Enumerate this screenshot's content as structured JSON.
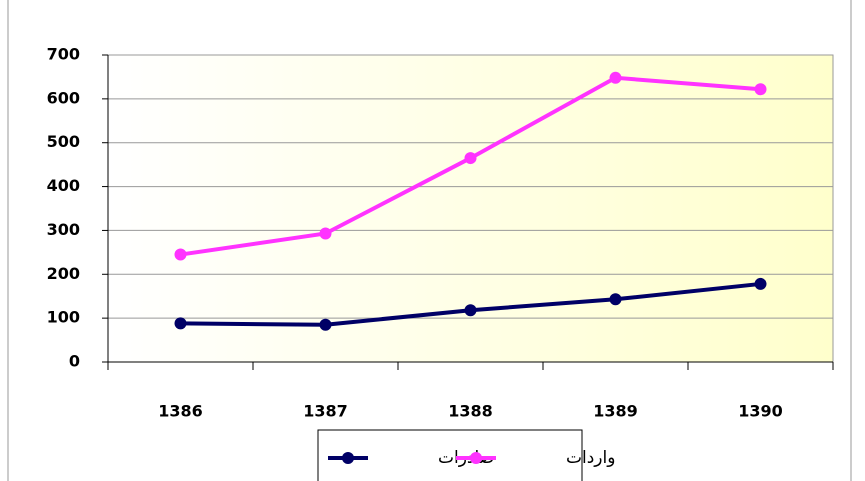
{
  "chart_data": {
    "type": "line",
    "categories": [
      "1386",
      "1387",
      "1388",
      "1389",
      "1390"
    ],
    "series": [
      {
        "name": "صادرات",
        "color": "#000066",
        "values": [
          88,
          85,
          118,
          143,
          178
        ]
      },
      {
        "name": "واردات",
        "color": "#ff33ff",
        "values": [
          245,
          293,
          465,
          648,
          622
        ]
      }
    ],
    "ylim": [
      0,
      700
    ],
    "yticks": [
      0,
      100,
      200,
      300,
      400,
      500,
      600,
      700
    ],
    "grid": true,
    "legend": "bottom"
  }
}
